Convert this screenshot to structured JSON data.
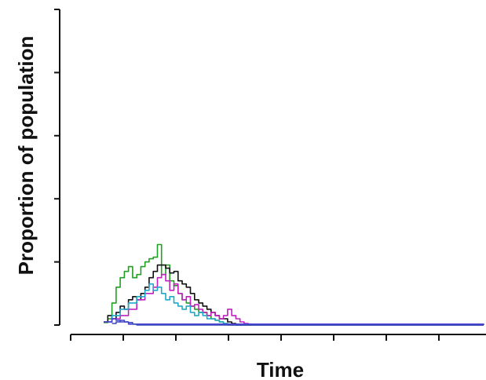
{
  "chart_data": {
    "type": "line",
    "title": "",
    "xlabel": "Time",
    "ylabel": "Proportion of population",
    "x_ticks_count": 9,
    "y_ticks_count": 6,
    "xlim": [
      0,
      100
    ],
    "ylim": [
      0,
      100
    ],
    "grid": false,
    "legend": "none",
    "series": [
      {
        "color": "#20a020",
        "x": [
          8,
          9,
          10,
          11,
          12,
          13,
          14,
          15,
          16,
          17,
          18,
          19,
          20,
          21,
          22,
          23,
          24,
          25,
          26,
          27,
          28,
          29,
          30,
          31,
          32,
          33,
          34,
          35,
          36,
          37,
          38,
          100
        ],
        "y": [
          0.8,
          2,
          7,
          12,
          15,
          17,
          18.5,
          15,
          16,
          18.5,
          20,
          21,
          21.5,
          25.5,
          16,
          19,
          14,
          12.5,
          10,
          8,
          7,
          6,
          5,
          4,
          4,
          3,
          2,
          1.5,
          1,
          0.5,
          0,
          0
        ]
      },
      {
        "color": "#111111",
        "x": [
          8,
          9,
          10,
          11,
          12,
          13,
          14,
          15,
          16,
          17,
          18,
          19,
          20,
          21,
          22,
          23,
          24,
          25,
          26,
          27,
          28,
          29,
          30,
          31,
          32,
          33,
          34,
          35,
          36,
          37,
          38,
          39,
          40,
          100
        ],
        "y": [
          1,
          3,
          2,
          4,
          6,
          5,
          8,
          9,
          8,
          10,
          12,
          15,
          17,
          19,
          19,
          18,
          16.5,
          17,
          14,
          13,
          12,
          10,
          8,
          7,
          6,
          5,
          4,
          3,
          2,
          2,
          1,
          0.5,
          0,
          0
        ]
      },
      {
        "color": "#c020c0",
        "x": [
          9,
          10,
          12,
          14,
          16,
          18,
          20,
          21,
          22,
          23,
          24,
          25,
          26,
          27,
          28,
          29,
          30,
          31,
          32,
          33,
          34,
          35,
          36,
          37,
          38,
          39,
          40,
          41,
          42,
          43,
          44,
          100
        ],
        "y": [
          1,
          2,
          3,
          5,
          8,
          10,
          12,
          15,
          16,
          14,
          11,
          13,
          10,
          8,
          9,
          6,
          6.5,
          5,
          4,
          3,
          4,
          3,
          2,
          3,
          5,
          3,
          2,
          1,
          0.5,
          0.2,
          0,
          0
        ]
      },
      {
        "color": "#20a8c8",
        "x": [
          9,
          10,
          12,
          14,
          16,
          18,
          19,
          20,
          21,
          22,
          23,
          24,
          25,
          26,
          27,
          28,
          29,
          30,
          31,
          32,
          33,
          34,
          35,
          36,
          37,
          38,
          39,
          100
        ],
        "y": [
          1,
          3,
          5,
          7,
          9,
          11,
          13,
          11,
          12,
          10,
          8,
          9,
          7,
          6,
          5,
          6,
          4,
          3,
          4,
          3,
          2,
          2,
          1.5,
          1,
          0.5,
          0.2,
          0,
          0
        ]
      },
      {
        "color": "#4b3fd4",
        "x": [
          8,
          9,
          10,
          11,
          12,
          14,
          100
        ],
        "y": [
          1,
          1,
          2,
          1.5,
          1,
          0.3,
          0
        ]
      },
      {
        "color": "#3a48c0",
        "x": [
          10,
          11,
          12,
          13,
          14,
          15,
          16,
          100
        ],
        "y": [
          0.5,
          1,
          1.5,
          1,
          0.8,
          0.3,
          0,
          0
        ]
      }
    ]
  }
}
